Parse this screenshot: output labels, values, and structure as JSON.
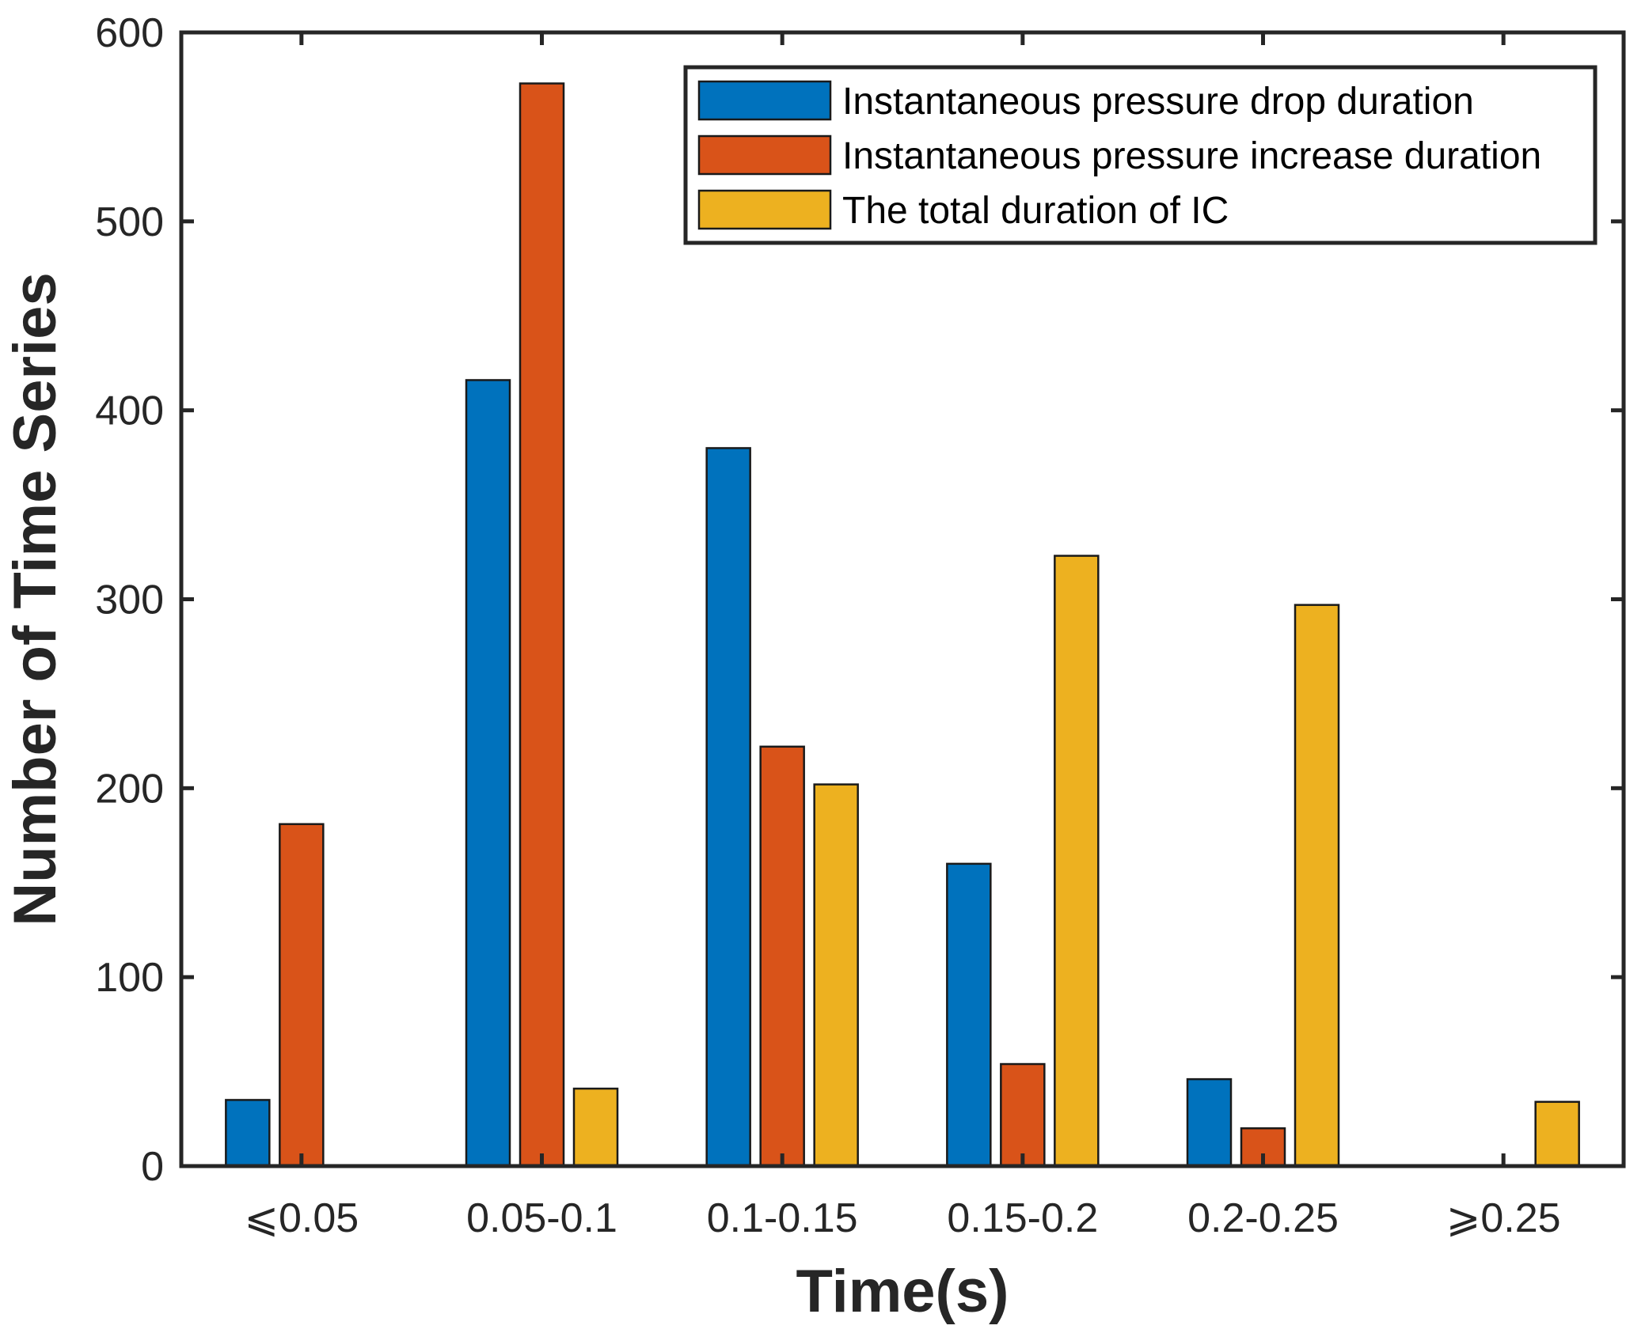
{
  "chart_data": {
    "type": "bar",
    "title": "",
    "xlabel": "Time(s)",
    "ylabel": "Number of Time Series",
    "categories": [
      "⩽0.05",
      "0.05-0.1",
      "0.1-0.15",
      "0.15-0.2",
      "0.2-0.25",
      "⩾0.25"
    ],
    "ylim": [
      0,
      600
    ],
    "yticks": [
      0,
      100,
      200,
      300,
      400,
      500,
      600
    ],
    "ytick_labels": [
      "0",
      "100",
      "200",
      "300",
      "400",
      "500",
      "600"
    ],
    "grid": false,
    "legend_position": "top-right",
    "series": [
      {
        "name": "Instantaneous pressure drop duration",
        "color": "#0072BD",
        "values": [
          35,
          416,
          380,
          160,
          46,
          0
        ]
      },
      {
        "name": "Instantaneous pressure increase duration",
        "color": "#D95319",
        "values": [
          181,
          573,
          222,
          54,
          20,
          0
        ]
      },
      {
        "name": "The total duration of IC",
        "color": "#EDB120",
        "values": [
          0,
          41,
          202,
          323,
          297,
          34
        ]
      }
    ]
  }
}
